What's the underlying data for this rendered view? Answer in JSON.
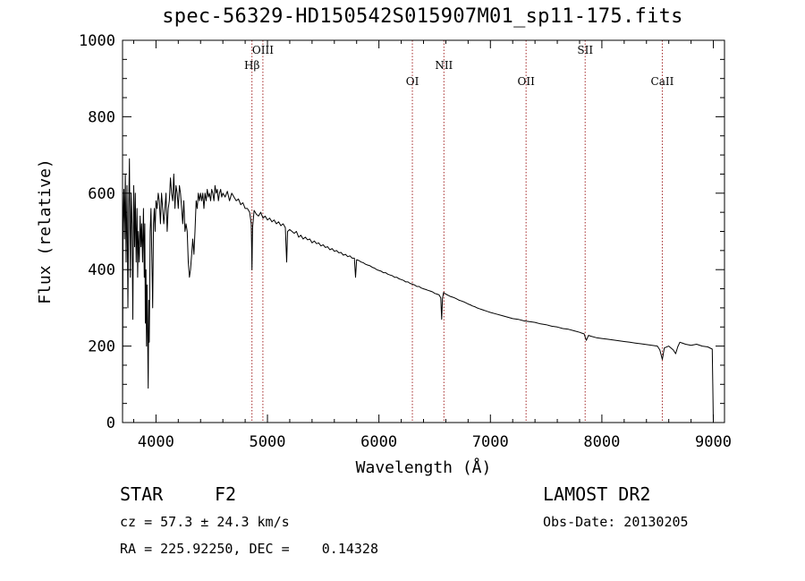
{
  "title": "spec-56329-HD150542S015907M01_sp11-175.fits",
  "chart_data": {
    "type": "line",
    "xlabel": "Wavelength (Å)",
    "ylabel": "Flux (relative)",
    "xlim": [
      3700,
      9100
    ],
    "ylim": [
      0,
      1000
    ],
    "x_ticks": [
      4000,
      5000,
      6000,
      7000,
      8000,
      9000
    ],
    "y_ticks": [
      0,
      200,
      400,
      600,
      800,
      1000
    ],
    "grid": false,
    "line_color": "#000000",
    "spectral_lines": [
      {
        "name": "Hβ",
        "x": 4861,
        "level": "upper"
      },
      {
        "name": "OIII",
        "x": 4959,
        "level": "top"
      },
      {
        "name": "OI",
        "x": 6300,
        "level": "lower"
      },
      {
        "name": "NII",
        "x": 6583,
        "level": "upper"
      },
      {
        "name": "OII",
        "x": 7320,
        "level": "lower"
      },
      {
        "name": "SII",
        "x": 7850,
        "level": "top"
      },
      {
        "name": "CaII",
        "x": 8542,
        "level": "lower"
      }
    ],
    "line_marker_color": "#a52a2a",
    "series": [
      {
        "values": [
          [
            3700,
            0
          ],
          [
            3705,
            520
          ],
          [
            3712,
            610
          ],
          [
            3718,
            480
          ],
          [
            3725,
            650
          ],
          [
            3732,
            420
          ],
          [
            3740,
            620
          ],
          [
            3748,
            300
          ],
          [
            3755,
            560
          ],
          [
            3762,
            690
          ],
          [
            3770,
            380
          ],
          [
            3778,
            600
          ],
          [
            3785,
            520
          ],
          [
            3792,
            270
          ],
          [
            3800,
            620
          ],
          [
            3808,
            460
          ],
          [
            3815,
            600
          ],
          [
            3822,
            420
          ],
          [
            3830,
            560
          ],
          [
            3836,
            380
          ],
          [
            3842,
            500
          ],
          [
            3850,
            420
          ],
          [
            3858,
            540
          ],
          [
            3865,
            460
          ],
          [
            3872,
            520
          ],
          [
            3880,
            420
          ],
          [
            3888,
            560
          ],
          [
            3895,
            380
          ],
          [
            3900,
            520
          ],
          [
            3905,
            260
          ],
          [
            3910,
            400
          ],
          [
            3915,
            200
          ],
          [
            3920,
            360
          ],
          [
            3925,
            240
          ],
          [
            3930,
            90
          ],
          [
            3935,
            320
          ],
          [
            3940,
            210
          ],
          [
            3948,
            500
          ],
          [
            3955,
            560
          ],
          [
            3962,
            440
          ],
          [
            3970,
            300
          ],
          [
            3978,
            520
          ],
          [
            3985,
            560
          ],
          [
            3992,
            500
          ],
          [
            4000,
            580
          ],
          [
            4010,
            560
          ],
          [
            4020,
            600
          ],
          [
            4030,
            580
          ],
          [
            4040,
            520
          ],
          [
            4050,
            600
          ],
          [
            4060,
            560
          ],
          [
            4070,
            520
          ],
          [
            4080,
            560
          ],
          [
            4090,
            600
          ],
          [
            4100,
            500
          ],
          [
            4110,
            560
          ],
          [
            4120,
            580
          ],
          [
            4130,
            640
          ],
          [
            4140,
            600
          ],
          [
            4150,
            580
          ],
          [
            4160,
            650
          ],
          [
            4170,
            560
          ],
          [
            4180,
            620
          ],
          [
            4190,
            600
          ],
          [
            4200,
            560
          ],
          [
            4210,
            620
          ],
          [
            4220,
            600
          ],
          [
            4230,
            560
          ],
          [
            4240,
            520
          ],
          [
            4250,
            580
          ],
          [
            4260,
            500
          ],
          [
            4270,
            520
          ],
          [
            4280,
            500
          ],
          [
            4290,
            420
          ],
          [
            4300,
            380
          ],
          [
            4310,
            400
          ],
          [
            4320,
            440
          ],
          [
            4330,
            480
          ],
          [
            4340,
            440
          ],
          [
            4350,
            500
          ],
          [
            4360,
            580
          ],
          [
            4370,
            560
          ],
          [
            4380,
            600
          ],
          [
            4390,
            580
          ],
          [
            4400,
            600
          ],
          [
            4410,
            580
          ],
          [
            4420,
            600
          ],
          [
            4430,
            560
          ],
          [
            4440,
            600
          ],
          [
            4450,
            580
          ],
          [
            4460,
            610
          ],
          [
            4470,
            590
          ],
          [
            4480,
            600
          ],
          [
            4490,
            580
          ],
          [
            4500,
            610
          ],
          [
            4510,
            600
          ],
          [
            4520,
            580
          ],
          [
            4530,
            620
          ],
          [
            4540,
            600
          ],
          [
            4550,
            610
          ],
          [
            4560,
            580
          ],
          [
            4570,
            600
          ],
          [
            4580,
            610
          ],
          [
            4590,
            590
          ],
          [
            4600,
            600
          ],
          [
            4620,
            590
          ],
          [
            4640,
            605
          ],
          [
            4660,
            580
          ],
          [
            4680,
            600
          ],
          [
            4700,
            590
          ],
          [
            4720,
            580
          ],
          [
            4740,
            585
          ],
          [
            4760,
            570
          ],
          [
            4780,
            575
          ],
          [
            4800,
            560
          ],
          [
            4820,
            560
          ],
          [
            4840,
            550
          ],
          [
            4855,
            520
          ],
          [
            4861,
            400
          ],
          [
            4867,
            510
          ],
          [
            4880,
            555
          ],
          [
            4900,
            545
          ],
          [
            4920,
            540
          ],
          [
            4940,
            550
          ],
          [
            4960,
            535
          ],
          [
            4980,
            540
          ],
          [
            5000,
            530
          ],
          [
            5020,
            535
          ],
          [
            5040,
            525
          ],
          [
            5060,
            530
          ],
          [
            5080,
            520
          ],
          [
            5100,
            525
          ],
          [
            5120,
            515
          ],
          [
            5140,
            520
          ],
          [
            5160,
            510
          ],
          [
            5172,
            420
          ],
          [
            5180,
            500
          ],
          [
            5200,
            505
          ],
          [
            5220,
            500
          ],
          [
            5240,
            495
          ],
          [
            5260,
            500
          ],
          [
            5280,
            485
          ],
          [
            5300,
            490
          ],
          [
            5320,
            480
          ],
          [
            5340,
            485
          ],
          [
            5360,
            478
          ],
          [
            5380,
            480
          ],
          [
            5400,
            470
          ],
          [
            5420,
            475
          ],
          [
            5440,
            468
          ],
          [
            5460,
            470
          ],
          [
            5480,
            462
          ],
          [
            5500,
            465
          ],
          [
            5520,
            458
          ],
          [
            5540,
            460
          ],
          [
            5560,
            452
          ],
          [
            5580,
            455
          ],
          [
            5600,
            448
          ],
          [
            5620,
            450
          ],
          [
            5640,
            444
          ],
          [
            5660,
            445
          ],
          [
            5680,
            438
          ],
          [
            5700,
            440
          ],
          [
            5720,
            434
          ],
          [
            5740,
            436
          ],
          [
            5760,
            430
          ],
          [
            5780,
            430
          ],
          [
            5790,
            380
          ],
          [
            5800,
            426
          ],
          [
            5820,
            424
          ],
          [
            5840,
            420
          ],
          [
            5860,
            418
          ],
          [
            5880,
            414
          ],
          [
            5900,
            412
          ],
          [
            5920,
            410
          ],
          [
            5940,
            406
          ],
          [
            5960,
            404
          ],
          [
            5980,
            400
          ],
          [
            6000,
            398
          ],
          [
            6020,
            396
          ],
          [
            6040,
            392
          ],
          [
            6060,
            392
          ],
          [
            6080,
            388
          ],
          [
            6100,
            386
          ],
          [
            6120,
            384
          ],
          [
            6140,
            380
          ],
          [
            6160,
            380
          ],
          [
            6180,
            376
          ],
          [
            6200,
            374
          ],
          [
            6220,
            372
          ],
          [
            6240,
            368
          ],
          [
            6260,
            368
          ],
          [
            6280,
            364
          ],
          [
            6300,
            362
          ],
          [
            6320,
            360
          ],
          [
            6340,
            356
          ],
          [
            6360,
            356
          ],
          [
            6380,
            352
          ],
          [
            6400,
            350
          ],
          [
            6420,
            348
          ],
          [
            6440,
            346
          ],
          [
            6460,
            344
          ],
          [
            6480,
            342
          ],
          [
            6500,
            338
          ],
          [
            6520,
            336
          ],
          [
            6540,
            334
          ],
          [
            6555,
            326
          ],
          [
            6563,
            270
          ],
          [
            6570,
            325
          ],
          [
            6580,
            340
          ],
          [
            6600,
            336
          ],
          [
            6620,
            333
          ],
          [
            6640,
            330
          ],
          [
            6660,
            328
          ],
          [
            6680,
            326
          ],
          [
            6700,
            323
          ],
          [
            6720,
            320
          ],
          [
            6740,
            318
          ],
          [
            6760,
            316
          ],
          [
            6780,
            313
          ],
          [
            6800,
            310
          ],
          [
            6820,
            308
          ],
          [
            6840,
            305
          ],
          [
            6860,
            303
          ],
          [
            6880,
            300
          ],
          [
            6900,
            298
          ],
          [
            6920,
            296
          ],
          [
            6940,
            294
          ],
          [
            6960,
            292
          ],
          [
            6980,
            290
          ],
          [
            7000,
            288
          ],
          [
            7050,
            284
          ],
          [
            7100,
            280
          ],
          [
            7150,
            276
          ],
          [
            7200,
            272
          ],
          [
            7250,
            270
          ],
          [
            7300,
            266
          ],
          [
            7350,
            264
          ],
          [
            7400,
            262
          ],
          [
            7450,
            258
          ],
          [
            7500,
            256
          ],
          [
            7550,
            252
          ],
          [
            7600,
            250
          ],
          [
            7650,
            246
          ],
          [
            7700,
            244
          ],
          [
            7750,
            240
          ],
          [
            7800,
            236
          ],
          [
            7820,
            234
          ],
          [
            7840,
            232
          ],
          [
            7860,
            215
          ],
          [
            7880,
            228
          ],
          [
            7900,
            226
          ],
          [
            7950,
            222
          ],
          [
            8000,
            220
          ],
          [
            8050,
            218
          ],
          [
            8100,
            216
          ],
          [
            8150,
            214
          ],
          [
            8200,
            212
          ],
          [
            8250,
            210
          ],
          [
            8300,
            208
          ],
          [
            8350,
            206
          ],
          [
            8400,
            204
          ],
          [
            8450,
            202
          ],
          [
            8498,
            200
          ],
          [
            8520,
            190
          ],
          [
            8542,
            165
          ],
          [
            8560,
            195
          ],
          [
            8600,
            200
          ],
          [
            8640,
            190
          ],
          [
            8662,
            180
          ],
          [
            8680,
            198
          ],
          [
            8700,
            210
          ],
          [
            8750,
            205
          ],
          [
            8800,
            202
          ],
          [
            8850,
            205
          ],
          [
            8900,
            200
          ],
          [
            8950,
            198
          ],
          [
            8990,
            192
          ],
          [
            8995,
            100
          ],
          [
            9000,
            0
          ]
        ]
      }
    ]
  },
  "info": {
    "class_label": "STAR",
    "subclass": "F2",
    "survey": "LAMOST DR2",
    "cz": "cz = 57.3 ± 24.3 km/s",
    "obs_date": "Obs-Date: 20130205",
    "radec": "RA = 225.92250, DEC =    0.14328"
  }
}
